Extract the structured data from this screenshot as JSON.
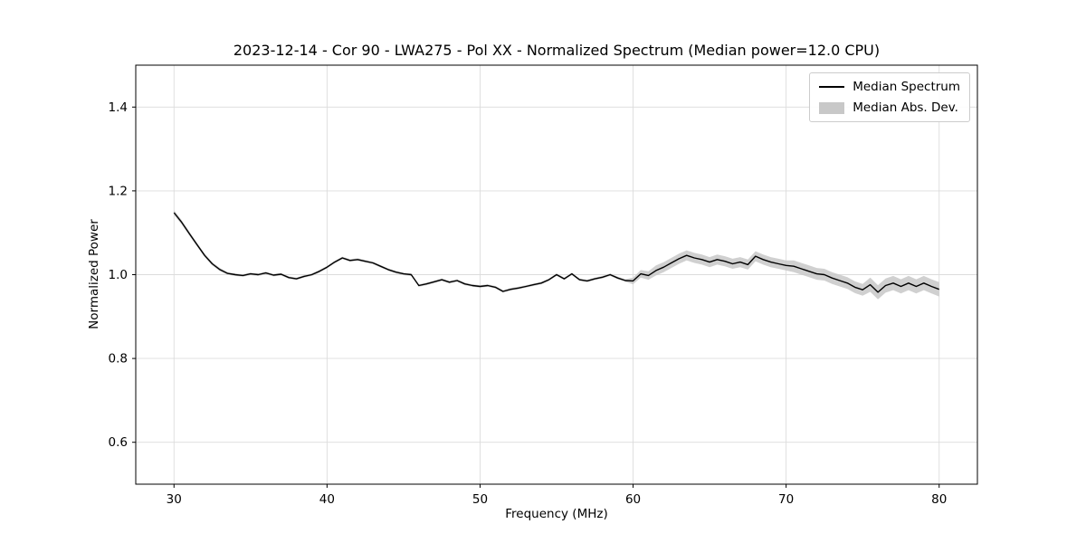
{
  "figure": {
    "title": "2023-12-14 - Cor 90 - LWA275 - Pol XX - Normalized Spectrum (Median power=12.0 CPU)",
    "xlabel": "Frequency (MHz)",
    "ylabel": "Normalized Power"
  },
  "legend": {
    "entries": [
      {
        "label": "Median Spectrum",
        "type": "line",
        "color": "#000000"
      },
      {
        "label": "Median Abs. Dev.",
        "type": "patch",
        "color": "#c8c8c8"
      }
    ],
    "position": "upper right"
  },
  "colors": {
    "line": "#000000",
    "band": "#c8c8c8",
    "grid": "#dcdcdc",
    "axis": "#000000",
    "background": "#ffffff"
  },
  "chart_data": {
    "type": "line",
    "title": "2023-12-14 - Cor 90 - LWA275 - Pol XX - Normalized Spectrum (Median power=12.0 CPU)",
    "xlabel": "Frequency (MHz)",
    "ylabel": "Normalized Power",
    "xlim": [
      27.5,
      82.5
    ],
    "ylim": [
      0.5,
      1.5
    ],
    "x_ticks": [
      30,
      40,
      50,
      60,
      70,
      80
    ],
    "y_ticks": [
      0.6,
      0.8,
      1.0,
      1.2,
      1.4
    ],
    "grid": true,
    "legend_position": "upper right",
    "x_start": 30,
    "x_step": 0.5,
    "series": [
      {
        "name": "Median Spectrum",
        "color": "#000000",
        "values": [
          1.148,
          1.125,
          1.098,
          1.072,
          1.046,
          1.026,
          1.012,
          1.003,
          1.0,
          0.998,
          1.002,
          1.0,
          1.004,
          0.999,
          1.001,
          0.993,
          0.99,
          0.996,
          1.0,
          1.008,
          1.018,
          1.03,
          1.04,
          1.034,
          1.036,
          1.032,
          1.028,
          1.02,
          1.012,
          1.006,
          1.002,
          1.0,
          0.974,
          0.978,
          0.983,
          0.988,
          0.982,
          0.986,
          0.978,
          0.974,
          0.972,
          0.974,
          0.97,
          0.96,
          0.965,
          0.968,
          0.972,
          0.976,
          0.98,
          0.988,
          1.0,
          0.99,
          1.002,
          0.988,
          0.985,
          0.99,
          0.994,
          1.0,
          0.992,
          0.986,
          0.985,
          1.002,
          0.998,
          1.01,
          1.018,
          1.028,
          1.038,
          1.046,
          1.04,
          1.036,
          1.03,
          1.036,
          1.032,
          1.026,
          1.03,
          1.024,
          1.044,
          1.036,
          1.03,
          1.026,
          1.022,
          1.02,
          1.014,
          1.008,
          1.002,
          1.0,
          0.992,
          0.986,
          0.98,
          0.97,
          0.964,
          0.976,
          0.958,
          0.974,
          0.98,
          0.972,
          0.98,
          0.972,
          0.98,
          0.972,
          0.965
        ]
      },
      {
        "name": "Median Abs. Dev.",
        "color": "#c8c8c8",
        "band_halfwidth": [
          0.006,
          0.005,
          0.005,
          0.004,
          0.004,
          0.004,
          0.004,
          0.003,
          0.003,
          0.003,
          0.003,
          0.003,
          0.003,
          0.003,
          0.003,
          0.003,
          0.003,
          0.003,
          0.003,
          0.003,
          0.003,
          0.003,
          0.003,
          0.003,
          0.003,
          0.003,
          0.003,
          0.003,
          0.003,
          0.003,
          0.003,
          0.003,
          0.003,
          0.003,
          0.003,
          0.003,
          0.003,
          0.003,
          0.003,
          0.003,
          0.003,
          0.003,
          0.003,
          0.003,
          0.003,
          0.003,
          0.003,
          0.003,
          0.003,
          0.003,
          0.003,
          0.003,
          0.003,
          0.003,
          0.003,
          0.003,
          0.003,
          0.003,
          0.003,
          0.003,
          0.008,
          0.009,
          0.01,
          0.012,
          0.012,
          0.012,
          0.012,
          0.012,
          0.012,
          0.012,
          0.012,
          0.012,
          0.012,
          0.012,
          0.012,
          0.012,
          0.012,
          0.012,
          0.012,
          0.012,
          0.012,
          0.014,
          0.014,
          0.014,
          0.014,
          0.014,
          0.014,
          0.014,
          0.014,
          0.014,
          0.014,
          0.017,
          0.017,
          0.017,
          0.017,
          0.017,
          0.017,
          0.017,
          0.017,
          0.017,
          0.017
        ]
      }
    ]
  }
}
